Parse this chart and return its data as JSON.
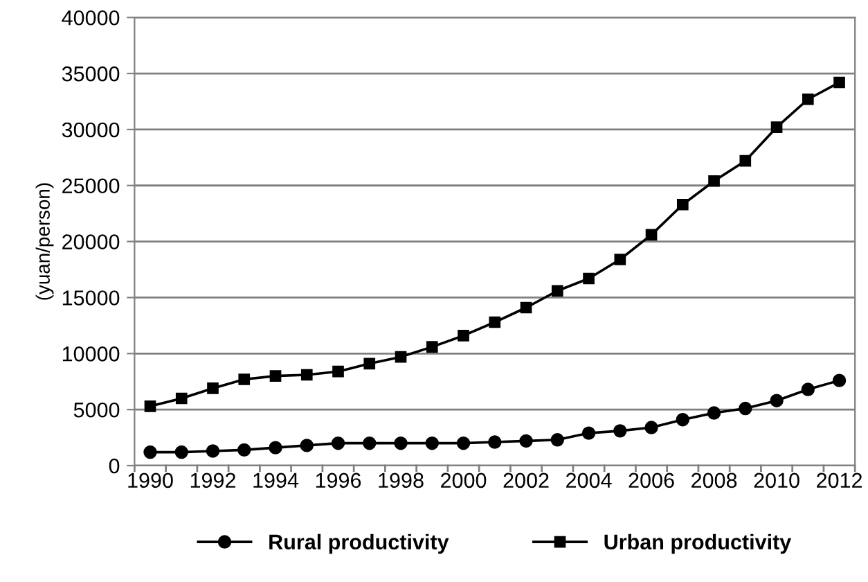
{
  "chart_data": {
    "type": "line",
    "ylabel": "(yuan/person)",
    "categories": [
      "1990",
      null,
      "1992",
      null,
      "1994",
      null,
      "1996",
      null,
      "1998",
      null,
      "2000",
      null,
      "2002",
      null,
      "2004",
      null,
      "2006",
      null,
      "2008",
      null,
      "2010",
      null,
      "2012"
    ],
    "series": [
      {
        "name": "Rural productivity",
        "color": "#000000",
        "marker": "circle",
        "values": [
          1200,
          1200,
          1300,
          1400,
          1600,
          1800,
          2000,
          2000,
          2000,
          2000,
          2000,
          2100,
          2200,
          2300,
          2900,
          3100,
          3400,
          4100,
          4700,
          5100,
          5800,
          6800,
          7600
        ]
      },
      {
        "name": "Urban productivity",
        "color": "#000000",
        "marker": "square",
        "values": [
          5300,
          6000,
          6900,
          7700,
          8000,
          8100,
          8400,
          9100,
          9700,
          10600,
          11600,
          12800,
          14100,
          15600,
          16700,
          18400,
          20600,
          23300,
          25400,
          27200,
          30200,
          32700,
          34200
        ]
      }
    ],
    "ylim": [
      0,
      40000
    ],
    "yticks": [
      0,
      5000,
      10000,
      15000,
      20000,
      25000,
      30000,
      35000,
      40000
    ],
    "grid": "y",
    "legend": "bottom",
    "line_style": "solid"
  }
}
